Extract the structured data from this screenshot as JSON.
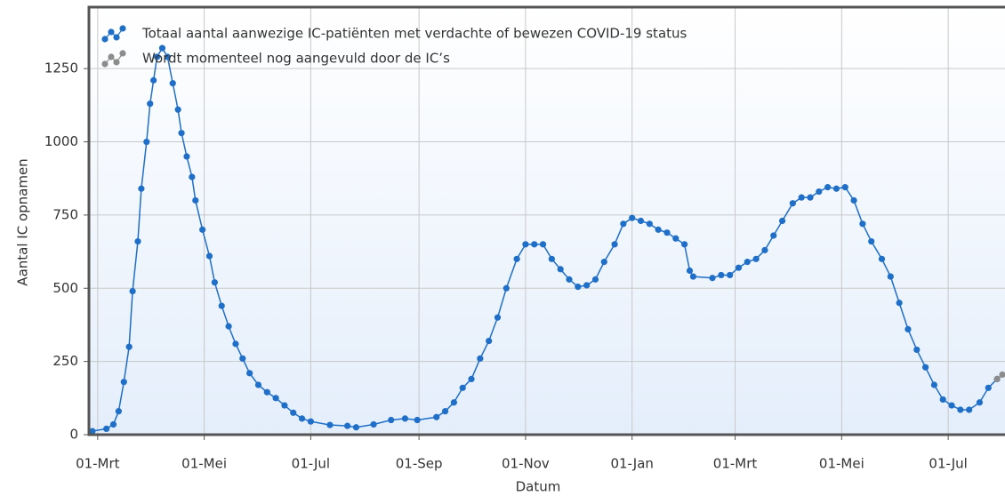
{
  "chart_data": {
    "type": "line",
    "xlabel": "Datum",
    "ylabel": "Aantal IC opnamen",
    "xlim": [
      -5,
      518
    ],
    "xticks": [
      {
        "value": 0,
        "label": "01-Mrt"
      },
      {
        "value": 61,
        "label": "01-Mei"
      },
      {
        "value": 122,
        "label": "01-Jul"
      },
      {
        "value": 184,
        "label": "01-Sep"
      },
      {
        "value": 245,
        "label": "01-Nov"
      },
      {
        "value": 306,
        "label": "01-Jan"
      },
      {
        "value": 365,
        "label": "01-Mrt"
      },
      {
        "value": 426,
        "label": "01-Mei"
      },
      {
        "value": 487,
        "label": "01-Jul"
      }
    ],
    "ylim": [
      0,
      1460
    ],
    "yticks": [
      0,
      250,
      500,
      750,
      1000,
      1250
    ],
    "grid": true,
    "legend": "top-left",
    "series": [
      {
        "name": "Totaal aantal aanwezige IC-patiënten met verdachte of bewezen COVID-19 status",
        "color": "#1f6fc8",
        "x": [
          -3,
          5,
          9,
          12,
          15,
          18,
          20,
          23,
          25,
          28,
          30,
          32,
          34,
          37,
          40,
          43,
          46,
          48,
          51,
          54,
          56,
          60,
          64,
          67,
          71,
          75,
          79,
          83,
          87,
          92,
          97,
          102,
          107,
          112,
          117,
          122,
          133,
          143,
          148,
          158,
          168,
          176,
          183,
          194,
          199,
          204,
          209,
          214,
          219,
          224,
          229,
          234,
          240,
          245,
          250,
          255,
          260,
          265,
          270,
          275,
          280,
          285,
          290,
          296,
          301,
          306,
          311,
          316,
          321,
          326,
          331,
          336,
          339,
          341,
          352,
          357,
          362,
          367,
          372,
          377,
          382,
          387,
          392,
          398,
          403,
          408,
          413,
          418,
          423,
          428,
          433,
          438,
          443,
          449,
          454,
          459,
          464,
          469,
          474,
          479,
          484,
          489,
          494,
          499,
          505,
          510,
          515
        ],
        "values": [
          12,
          20,
          35,
          80,
          180,
          300,
          490,
          660,
          840,
          1000,
          1130,
          1210,
          1290,
          1320,
          1290,
          1200,
          1110,
          1030,
          950,
          880,
          800,
          700,
          610,
          520,
          440,
          370,
          310,
          260,
          210,
          170,
          145,
          125,
          100,
          75,
          55,
          45,
          33,
          30,
          25,
          35,
          50,
          55,
          50,
          60,
          80,
          110,
          160,
          190,
          260,
          320,
          400,
          500,
          600,
          650,
          650,
          650,
          600,
          565,
          530,
          505,
          510,
          530,
          590,
          650,
          720,
          740,
          730,
          720,
          700,
          690,
          670,
          650,
          560,
          540,
          535,
          545,
          545,
          570,
          590,
          600,
          630,
          680,
          730,
          790,
          810,
          810,
          830,
          845,
          840,
          845,
          800,
          720,
          660,
          600,
          540,
          450,
          360,
          290,
          230,
          170,
          120,
          100,
          85,
          85,
          110,
          160,
          190
        ]
      },
      {
        "name": "Wordt momenteel nog aangevuld door de IC’s",
        "color": "#8c8c8c",
        "x": [
          515,
          518
        ],
        "values": [
          190,
          205
        ]
      }
    ]
  }
}
